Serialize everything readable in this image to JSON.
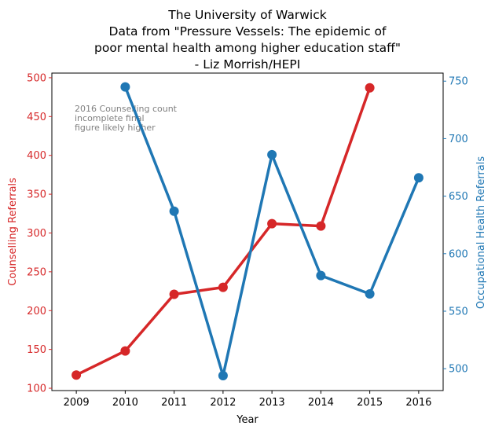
{
  "chart_data": {
    "type": "line",
    "title_lines": [
      "The University of Warwick",
      "Data from \"Pressure Vessels: The epidemic of",
      "poor mental health among higher education staff\"",
      "- Liz Morrish/HEPI"
    ],
    "xlabel": "Year",
    "x": [
      2009,
      2010,
      2011,
      2012,
      2013,
      2014,
      2015,
      2016
    ],
    "xlim": [
      2008.5,
      2016.5
    ],
    "series": [
      {
        "name": "Counselling Referrals",
        "axis": "left",
        "color": "#d62728",
        "x": [
          2009,
          2010,
          2011,
          2012,
          2013,
          2014,
          2015
        ],
        "values": [
          117,
          148,
          221,
          230,
          312,
          309,
          487
        ]
      },
      {
        "name": "Occupational Health Referrals",
        "axis": "right",
        "color": "#1f77b4",
        "x": [
          2010,
          2011,
          2012,
          2013,
          2014,
          2015,
          2016
        ],
        "values": [
          745,
          637,
          494,
          686,
          581,
          565,
          666
        ]
      }
    ],
    "left_axis": {
      "label": "Counselling Referrals",
      "color": "#d62728",
      "ylim": [
        97,
        506
      ],
      "ticks": [
        100,
        150,
        200,
        250,
        300,
        350,
        400,
        450,
        500
      ]
    },
    "right_axis": {
      "label": "Occupational Health Referrals",
      "color": "#1f77b4",
      "ylim": [
        481,
        757
      ],
      "ticks": [
        500,
        550,
        600,
        650,
        700,
        750
      ]
    },
    "annotation": {
      "lines": [
        "2016 Counselling count",
        "incomplete final",
        "figure likely higher"
      ],
      "x": 2009,
      "y": 460
    },
    "grid": false,
    "legend": "none"
  }
}
